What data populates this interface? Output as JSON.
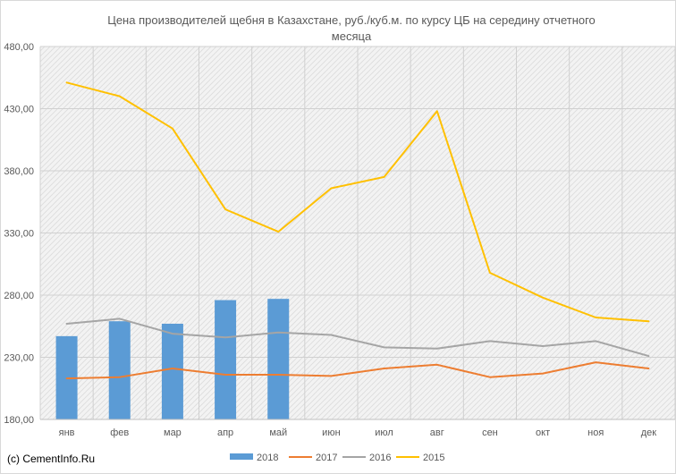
{
  "chart_data": {
    "type": "bar+line",
    "title_lines": [
      "Цена производителей щебня в Казахстане, руб./куб.м. по курсу ЦБ на середину отчетного",
      "месяца"
    ],
    "categories": [
      "янв",
      "фев",
      "мар",
      "апр",
      "май",
      "июн",
      "июл",
      "авг",
      "сен",
      "окт",
      "ноя",
      "дек"
    ],
    "ylim": [
      180,
      480
    ],
    "yticks": [
      180,
      230,
      280,
      330,
      380,
      430,
      480
    ],
    "ytick_labels": [
      "180,00",
      "230,00",
      "280,00",
      "330,00",
      "380,00",
      "430,00",
      "480,00"
    ],
    "grid": true,
    "legend_position": "bottom",
    "series": [
      {
        "name": "2018",
        "kind": "bar",
        "color": "#5b9bd5",
        "values": [
          247,
          259,
          257,
          276,
          277,
          null,
          null,
          null,
          null,
          null,
          null,
          null
        ]
      },
      {
        "name": "2017",
        "kind": "line",
        "color": "#ed7d31",
        "values": [
          213,
          214,
          221,
          216,
          216,
          215,
          221,
          224,
          214,
          217,
          226,
          221
        ]
      },
      {
        "name": "2016",
        "kind": "line",
        "color": "#a5a5a5",
        "values": [
          257,
          261,
          249,
          246,
          250,
          248,
          238,
          237,
          243,
          239,
          243,
          231
        ]
      },
      {
        "name": "2015",
        "kind": "line",
        "color": "#ffc000",
        "values": [
          451,
          440,
          414,
          349,
          331,
          366,
          375,
          428,
          298,
          278,
          262,
          259
        ]
      }
    ]
  },
  "footer": {
    "copyright": "(c) CementInfo.Ru"
  }
}
